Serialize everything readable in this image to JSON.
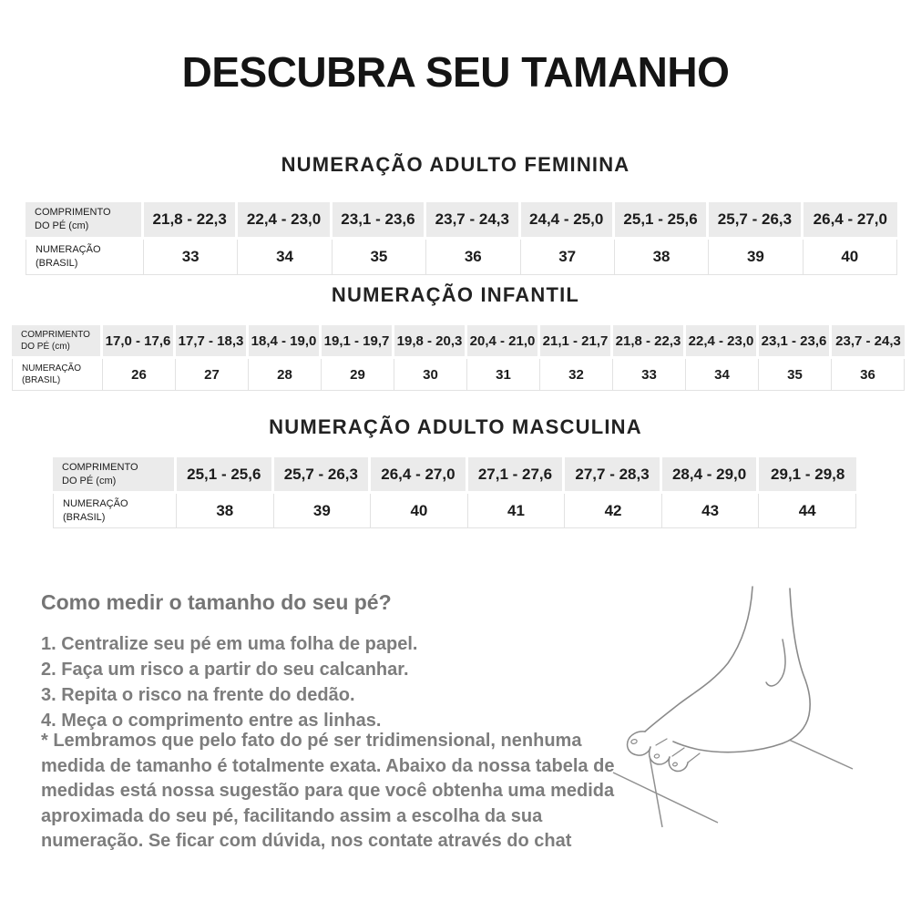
{
  "page": {
    "title": "DESCUBRA SEU TAMANHO"
  },
  "row_labels": {
    "length": "COMPRIMENTO\nDO PÉ (cm)",
    "size": "NUMERAÇÃO\n(BRASIL)"
  },
  "tables": [
    {
      "heading": "NUMERAÇÃO ADULTO FEMININA",
      "lengths_cm": [
        "21,8 - 22,3",
        "22,4 - 23,0",
        "23,1 - 23,6",
        "23,7 - 24,3",
        "24,4 - 25,0",
        "25,1 - 25,6",
        "25,7 - 26,3",
        "26,4 - 27,0"
      ],
      "sizes_brasil": [
        "33",
        "34",
        "35",
        "36",
        "37",
        "38",
        "39",
        "40"
      ]
    },
    {
      "heading": "NUMERAÇÃO INFANTIL",
      "lengths_cm": [
        "17,0 - 17,6",
        "17,7 - 18,3",
        "18,4 - 19,0",
        "19,1 - 19,7",
        "19,8 - 20,3",
        "20,4 - 21,0",
        "21,1 - 21,7",
        "21,8 - 22,3",
        "22,4 - 23,0",
        "23,1 - 23,6",
        "23,7 - 24,3"
      ],
      "sizes_brasil": [
        "26",
        "27",
        "28",
        "29",
        "30",
        "31",
        "32",
        "33",
        "34",
        "35",
        "36"
      ]
    },
    {
      "heading": "NUMERAÇÃO ADULTO MASCULINA",
      "lengths_cm": [
        "25,1 - 25,6",
        "25,7 - 26,3",
        "26,4 - 27,0",
        "27,1 - 27,6",
        "27,7 - 28,3",
        "28,4 - 29,0",
        "29,1 - 29,8"
      ],
      "sizes_brasil": [
        "38",
        "39",
        "40",
        "41",
        "42",
        "43",
        "44"
      ]
    }
  ],
  "howto": {
    "heading": "Como medir o tamanho do seu pé?",
    "steps": [
      "1. Centralize seu pé em uma folha de papel.",
      "2. Faça um risco a partir do seu calcanhar.",
      "3. Repita o risco na frente do dedão.",
      "4. Meça o comprimento entre as linhas."
    ]
  },
  "note": "* Lembramos que pelo fato do pé ser tridimensional, nenhuma medida de tamanho é totalmente exata. Abaixo da nossa tabela de medidas está nossa sugestão para que você obtenha uma medida aproximada do seu pé, facilitando assim a escolha da sua numeração. Se ficar com dúvida, nos contate através do chat",
  "illustration": {
    "name": "foot-measurement-line-drawing"
  },
  "colors": {
    "table_header_bg": "#ebebeb",
    "table_border": "#e2e2e2",
    "heading_text": "#1c1c1c",
    "muted_text": "#7d7d7d",
    "illustration_stroke": "#909090"
  }
}
